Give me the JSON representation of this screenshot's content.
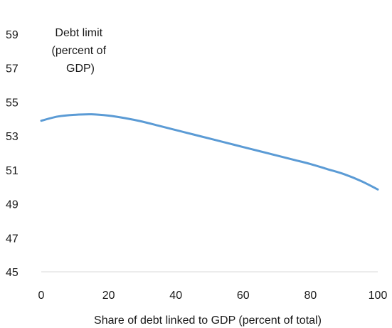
{
  "chart_data": {
    "type": "line",
    "title": "",
    "ylabel_lines": [
      "Debt limit",
      "(percent of",
      "GDP)"
    ],
    "xlabel": "Share of debt linked to GDP (percent of total)",
    "xlim": [
      0,
      100
    ],
    "ylim": [
      45,
      59
    ],
    "xticks": [
      "0",
      "20",
      "40",
      "60",
      "80",
      "100"
    ],
    "yticks": [
      "45",
      "47",
      "49",
      "51",
      "53",
      "55",
      "57",
      "59"
    ],
    "grid": false,
    "legend": "none",
    "series": [
      {
        "color": "#5b9bd5",
        "x": [
          0,
          5,
          10,
          15,
          20,
          25,
          30,
          35,
          40,
          45,
          50,
          55,
          60,
          65,
          70,
          75,
          80,
          85,
          90,
          95,
          100
        ],
        "y": [
          53.9,
          54.15,
          54.25,
          54.28,
          54.2,
          54.05,
          53.85,
          53.6,
          53.35,
          53.1,
          52.85,
          52.6,
          52.35,
          52.1,
          51.85,
          51.6,
          51.35,
          51.05,
          50.75,
          50.35,
          49.85
        ]
      }
    ]
  }
}
